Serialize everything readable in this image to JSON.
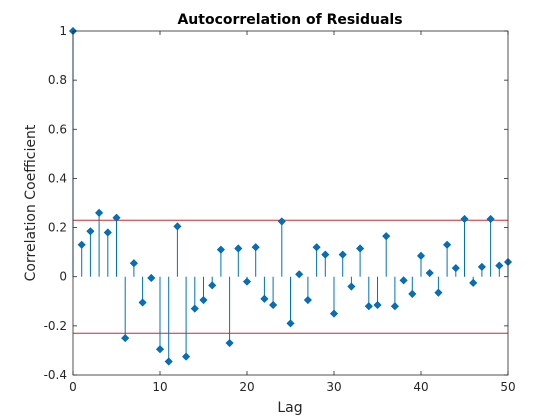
{
  "chart_data": {
    "type": "stem",
    "title": "Autocorrelation of Residuals",
    "xlabel": "Lag",
    "ylabel": "Correlation Coefficient",
    "xlim": [
      0,
      50
    ],
    "ylim": [
      -0.4,
      1
    ],
    "xticks": [
      0,
      10,
      20,
      30,
      40,
      50
    ],
    "yticks": [
      -0.4,
      -0.2,
      0,
      0.2,
      0.4,
      0.6,
      0.8,
      1
    ],
    "grid": false,
    "bounds": [
      0.23,
      -0.23
    ],
    "colors": {
      "stem": "#0072BD",
      "bound": "#D62728",
      "axis": "#262626"
    },
    "x": [
      0,
      1,
      2,
      3,
      4,
      5,
      6,
      7,
      8,
      9,
      10,
      11,
      12,
      13,
      14,
      15,
      16,
      17,
      18,
      19,
      20,
      21,
      22,
      23,
      24,
      25,
      26,
      27,
      28,
      29,
      30,
      31,
      32,
      33,
      34,
      35,
      36,
      37,
      38,
      39,
      40,
      41,
      42,
      43,
      44,
      45,
      46,
      47,
      48,
      49,
      50
    ],
    "values": [
      1.0,
      0.13,
      0.185,
      0.26,
      0.18,
      0.24,
      -0.25,
      0.055,
      -0.105,
      -0.005,
      -0.295,
      -0.345,
      0.205,
      -0.325,
      -0.13,
      -0.095,
      -0.035,
      0.11,
      -0.27,
      0.115,
      -0.02,
      0.12,
      -0.09,
      -0.115,
      0.225,
      -0.19,
      0.01,
      -0.095,
      0.12,
      0.09,
      -0.15,
      0.09,
      -0.04,
      0.115,
      -0.12,
      -0.115,
      0.165,
      -0.12,
      -0.015,
      -0.07,
      0.085,
      0.015,
      -0.065,
      0.13,
      0.035,
      0.235,
      -0.025,
      0.04,
      0.235,
      0.045,
      0.06
    ]
  }
}
